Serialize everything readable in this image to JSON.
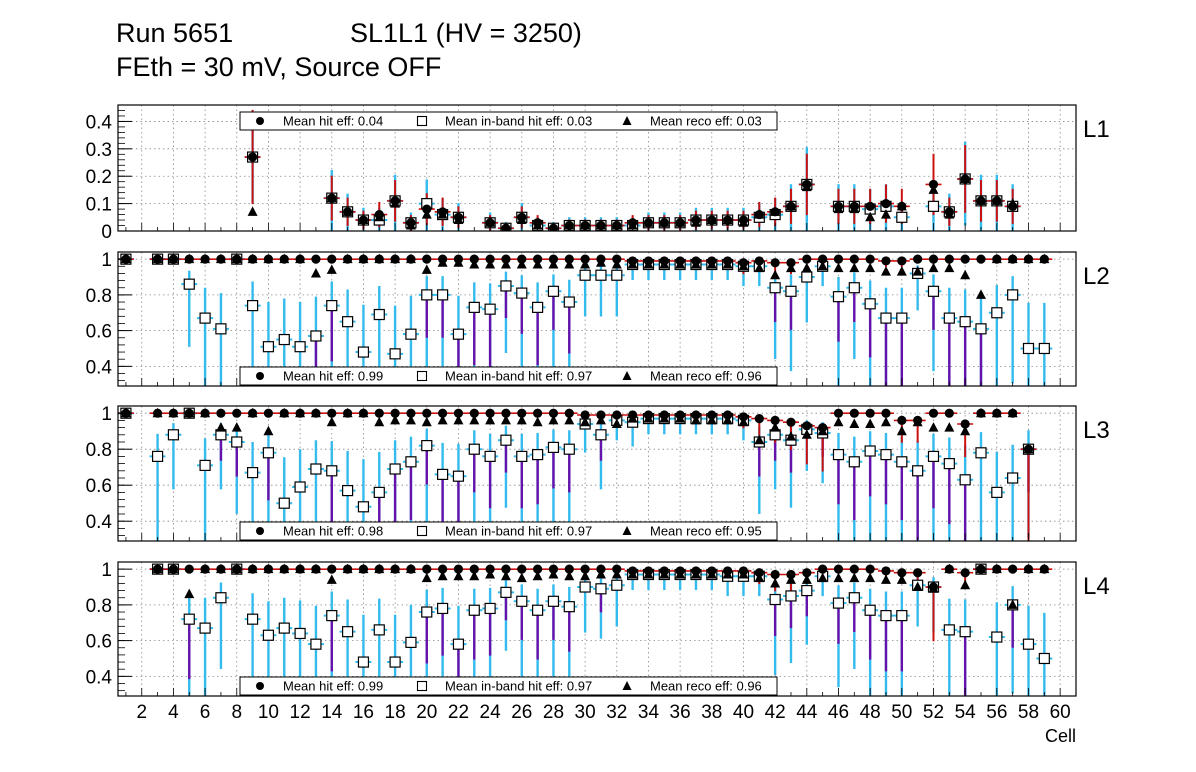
{
  "header": {
    "run": "Run 5651",
    "chamber": "SL1L1 (HV = 3250)",
    "condition": "FEth = 30 mV, Source OFF"
  },
  "colors": {
    "hit_err": "#cc1111",
    "inband_err": "#33bbee",
    "reco_err": "#6611aa",
    "grid": "#888888",
    "marker": "#000000",
    "inband_fill": "#ffffff"
  },
  "chart_data": {
    "type": "scatter",
    "xlabel": "Cell",
    "x_ticks": [
      2,
      4,
      6,
      8,
      10,
      12,
      14,
      16,
      18,
      20,
      22,
      24,
      26,
      28,
      30,
      32,
      34,
      36,
      38,
      40,
      42,
      44,
      46,
      48,
      50,
      52,
      54,
      56,
      58,
      60
    ],
    "x_range": [
      0.5,
      61
    ],
    "grid": true,
    "legend_placement": "top-center",
    "legend_markers": {
      "hit": "filled-circle",
      "inband": "open-square",
      "reco": "filled-triangle"
    },
    "panels": [
      {
        "name": "L1",
        "ylim": [
          0,
          0.46
        ],
        "y_ticks": [
          0,
          0.1,
          0.2,
          0.3,
          0.4
        ],
        "y_tick_labels": [
          "0",
          "0.1",
          "0.2",
          "0.3",
          "0.4"
        ],
        "legend": [
          "Mean hit  eff: 0.04",
          "Mean in-band hit eff: 0.03",
          "Mean reco eff: 0.03"
        ],
        "cells": [
          9,
          14,
          15,
          16,
          17,
          18,
          19,
          20,
          21,
          22,
          24,
          25,
          26,
          27,
          28,
          29,
          30,
          31,
          32,
          33,
          34,
          35,
          36,
          37,
          38,
          39,
          40,
          41,
          42,
          43,
          44,
          46,
          47,
          48,
          49,
          50,
          52,
          53,
          54,
          55,
          56,
          57
        ],
        "hit": [
          0.27,
          0.12,
          0.07,
          0.04,
          0.06,
          0.11,
          0.03,
          0.08,
          0.07,
          0.05,
          0.03,
          0.01,
          0.05,
          0.03,
          0.01,
          0.02,
          0.02,
          0.02,
          0.02,
          0.03,
          0.03,
          0.03,
          0.03,
          0.04,
          0.04,
          0.04,
          0.04,
          0.06,
          0.07,
          0.09,
          0.17,
          0.09,
          0.09,
          0.09,
          0.1,
          0.09,
          0.17,
          0.07,
          0.19,
          0.11,
          0.11,
          0.09
        ],
        "inband": [
          0.27,
          0.12,
          0.07,
          0.04,
          0.04,
          0.11,
          0.03,
          0.1,
          0.06,
          0.05,
          0.03,
          0.01,
          0.05,
          0.02,
          0.01,
          0.02,
          0.02,
          0.02,
          0.02,
          0.02,
          0.03,
          0.03,
          0.03,
          0.04,
          0.04,
          0.04,
          0.04,
          0.05,
          0.06,
          0.09,
          0.17,
          0.09,
          0.09,
          0.08,
          0.09,
          0.05,
          0.09,
          0.07,
          0.19,
          0.11,
          0.11,
          0.09
        ],
        "reco": [
          0.07,
          0.12,
          0.07,
          0.04,
          0.05,
          0.1,
          0.02,
          0.06,
          0.06,
          0.04,
          0.03,
          0.01,
          0.04,
          0.02,
          0.01,
          0.02,
          0.02,
          0.02,
          0.02,
          0.02,
          0.03,
          0.03,
          0.03,
          0.03,
          0.04,
          0.04,
          0.03,
          0.06,
          0.07,
          0.09,
          0.16,
          0.08,
          0.08,
          0.05,
          0.06,
          0.09,
          0.15,
          0.06,
          0.19,
          0.11,
          0.11,
          0.1
        ]
      },
      {
        "name": "L2",
        "ylim": [
          0.29,
          1.04
        ],
        "y_ticks": [
          0.4,
          0.6,
          0.8,
          1.0
        ],
        "y_tick_labels": [
          "0.4",
          "0.6",
          "0.8",
          "1"
        ],
        "legend": [
          "Mean hit  eff: 0.99",
          "Mean in-band hit eff: 0.97",
          "Mean reco eff: 0.96"
        ],
        "cells": [
          1,
          3,
          4,
          5,
          6,
          7,
          8,
          9,
          10,
          11,
          12,
          13,
          14,
          15,
          16,
          17,
          18,
          19,
          20,
          21,
          22,
          23,
          24,
          25,
          26,
          27,
          28,
          29,
          30,
          31,
          32,
          33,
          34,
          35,
          36,
          37,
          38,
          39,
          40,
          41,
          42,
          43,
          44,
          45,
          46,
          47,
          48,
          49,
          50,
          51,
          52,
          53,
          54,
          55,
          56,
          57,
          58,
          59
        ],
        "hit": [
          1,
          1,
          1,
          1,
          1,
          1,
          1,
          1,
          1,
          1,
          1,
          1,
          1,
          1,
          1,
          1,
          1,
          1,
          1,
          1,
          1,
          1,
          1,
          1,
          1,
          1,
          1,
          1,
          1,
          1,
          1,
          0.99,
          0.99,
          0.99,
          0.99,
          0.99,
          0.99,
          0.99,
          0.98,
          0.99,
          0.98,
          0.98,
          1,
          1,
          1,
          1,
          1,
          0.99,
          0.99,
          1,
          1,
          1,
          1,
          1,
          1,
          1,
          1,
          1
        ],
        "inband": [
          1,
          1,
          1,
          0.86,
          0.67,
          0.61,
          1,
          0.74,
          0.51,
          0.55,
          0.51,
          0.57,
          0.74,
          0.65,
          0.48,
          0.69,
          0.47,
          0.58,
          0.8,
          0.8,
          0.58,
          0.73,
          0.72,
          0.85,
          0.81,
          0.73,
          0.82,
          0.76,
          0.91,
          0.91,
          0.91,
          0.97,
          0.97,
          0.97,
          0.97,
          0.97,
          0.97,
          0.97,
          0.96,
          0.96,
          0.84,
          0.82,
          0.9,
          0.96,
          0.79,
          0.84,
          0.75,
          0.67,
          0.67,
          0.92,
          0.82,
          0.67,
          0.65,
          0.61,
          0.7,
          0.8,
          0.5,
          0.5
        ],
        "reco": [
          1,
          1,
          1,
          1,
          1,
          1,
          1,
          1,
          1,
          1,
          1,
          0.92,
          0.94,
          1,
          1,
          1,
          1,
          1,
          0.94,
          0.98,
          0.98,
          0.97,
          0.97,
          0.97,
          0.97,
          0.97,
          0.97,
          0.97,
          0.97,
          0.98,
          0.97,
          0.97,
          0.97,
          0.97,
          0.97,
          0.97,
          0.97,
          0.97,
          0.96,
          0.95,
          0.91,
          0.95,
          0.95,
          0.96,
          0.95,
          0.95,
          0.95,
          0.93,
          0.93,
          0.93,
          0.95,
          0.95,
          0.91,
          0.8,
          1,
          1,
          1,
          1
        ]
      },
      {
        "name": "L3",
        "ylim": [
          0.29,
          1.04
        ],
        "y_ticks": [
          0.4,
          0.6,
          0.8,
          1.0
        ],
        "y_tick_labels": [
          "0.4",
          "0.6",
          "0.8",
          "1"
        ],
        "legend": [
          "Mean hit  eff: 0.98",
          "Mean in-band hit eff: 0.97",
          "Mean reco eff: 0.95"
        ],
        "cells": [
          1,
          3,
          4,
          5,
          6,
          7,
          8,
          9,
          10,
          11,
          12,
          13,
          14,
          15,
          16,
          17,
          18,
          19,
          20,
          21,
          22,
          23,
          24,
          25,
          26,
          27,
          28,
          29,
          30,
          31,
          32,
          33,
          34,
          35,
          36,
          37,
          38,
          39,
          40,
          41,
          42,
          43,
          44,
          45,
          46,
          47,
          48,
          49,
          50,
          51,
          52,
          53,
          54,
          55,
          56,
          57,
          58
        ],
        "hit": [
          1,
          1,
          1,
          1,
          1,
          1,
          1,
          1,
          1,
          1,
          1,
          1,
          1,
          1,
          1,
          1,
          1,
          1,
          1,
          1,
          1,
          1,
          1,
          1,
          1,
          1,
          1,
          1,
          0.99,
          0.99,
          0.99,
          0.99,
          0.99,
          0.99,
          0.99,
          0.99,
          0.99,
          0.99,
          0.98,
          0.97,
          0.96,
          0.95,
          0.93,
          0.92,
          1,
          1,
          1,
          1,
          0.96,
          0.96,
          1,
          1,
          0.94,
          1,
          1,
          1,
          0.8
        ],
        "inband": [
          1,
          0.76,
          0.88,
          1,
          0.71,
          0.88,
          0.84,
          0.67,
          0.78,
          0.5,
          0.59,
          0.69,
          0.68,
          0.57,
          0.48,
          0.56,
          0.69,
          0.73,
          0.82,
          0.66,
          0.65,
          0.8,
          0.76,
          0.85,
          0.76,
          0.77,
          0.81,
          0.8,
          0.94,
          0.88,
          0.96,
          0.95,
          0.97,
          0.97,
          0.97,
          0.97,
          0.97,
          0.97,
          0.96,
          0.84,
          0.88,
          0.85,
          0.91,
          0.89,
          0.77,
          0.73,
          0.79,
          0.77,
          0.73,
          0.68,
          0.76,
          0.72,
          0.63,
          0.78,
          0.56,
          0.64,
          0.8
        ],
        "reco": [
          1,
          1,
          1,
          1,
          1,
          0.92,
          0.92,
          1,
          0.9,
          1,
          1,
          1,
          0.95,
          1,
          1,
          0.95,
          0.96,
          0.96,
          0.95,
          0.96,
          0.96,
          0.96,
          0.96,
          0.96,
          0.96,
          0.95,
          0.96,
          0.96,
          0.95,
          0.96,
          0.94,
          0.97,
          0.97,
          0.97,
          0.97,
          0.96,
          0.96,
          0.96,
          0.95,
          0.85,
          0.92,
          0.87,
          0.88,
          0.9,
          0.95,
          0.94,
          0.94,
          0.95,
          0.9,
          0.95,
          0.92,
          0.92,
          0.9,
          1,
          1,
          1,
          0.8
        ]
      },
      {
        "name": "L4",
        "ylim": [
          0.29,
          1.04
        ],
        "y_ticks": [
          0.4,
          0.6,
          0.8,
          1.0
        ],
        "y_tick_labels": [
          "0.4",
          "0.6",
          "0.8",
          "1"
        ],
        "legend": [
          "Mean hit  eff: 0.99",
          "Mean in-band hit eff: 0.97",
          "Mean reco eff: 0.96"
        ],
        "cells": [
          3,
          4,
          5,
          6,
          7,
          8,
          9,
          10,
          11,
          12,
          13,
          14,
          15,
          16,
          17,
          18,
          19,
          20,
          21,
          22,
          23,
          24,
          25,
          26,
          27,
          28,
          29,
          30,
          31,
          32,
          33,
          34,
          35,
          36,
          37,
          38,
          39,
          40,
          41,
          42,
          43,
          44,
          45,
          46,
          47,
          48,
          49,
          50,
          51,
          52,
          53,
          54,
          55,
          56,
          57,
          58,
          59
        ],
        "hit": [
          1,
          1,
          1,
          1,
          1,
          1,
          1,
          1,
          1,
          1,
          1,
          1,
          1,
          1,
          1,
          1,
          1,
          1,
          1,
          1,
          1,
          1,
          1,
          1,
          1,
          1,
          1,
          1,
          1,
          1,
          0.99,
          0.99,
          0.99,
          0.99,
          0.99,
          0.99,
          0.99,
          0.99,
          0.98,
          0.97,
          0.97,
          0.98,
          1,
          1,
          1,
          1,
          0.99,
          0.98,
          0.98,
          0.9,
          1,
          0.98,
          1,
          1,
          1,
          1,
          1
        ],
        "inband": [
          1,
          1,
          0.72,
          0.67,
          0.84,
          1,
          0.72,
          0.63,
          0.67,
          0.64,
          0.58,
          0.74,
          0.65,
          0.48,
          0.66,
          0.48,
          0.59,
          0.76,
          0.78,
          0.58,
          0.77,
          0.78,
          0.87,
          0.82,
          0.77,
          0.82,
          0.79,
          0.9,
          0.89,
          0.91,
          0.97,
          0.97,
          0.97,
          0.97,
          0.97,
          0.97,
          0.96,
          0.96,
          0.96,
          0.83,
          0.85,
          0.88,
          0.96,
          0.81,
          0.84,
          0.77,
          0.74,
          0.74,
          0.91,
          0.9,
          0.66,
          0.65,
          1,
          0.62,
          0.8,
          0.58,
          0.5
        ],
        "reco": [
          1,
          1,
          0.86,
          1,
          1,
          1,
          1,
          1,
          1,
          1,
          1,
          0.94,
          1,
          1,
          1,
          1,
          1,
          0.95,
          0.96,
          0.96,
          0.96,
          0.97,
          0.96,
          0.95,
          0.96,
          0.97,
          0.96,
          0.96,
          0.97,
          0.97,
          0.97,
          0.97,
          0.97,
          0.97,
          0.97,
          0.97,
          0.97,
          0.97,
          0.95,
          0.92,
          0.94,
          0.94,
          0.95,
          0.95,
          0.95,
          0.95,
          0.94,
          0.94,
          0.9,
          0.89,
          1,
          0.91,
          1,
          1,
          0.8,
          1,
          1
        ]
      }
    ]
  }
}
